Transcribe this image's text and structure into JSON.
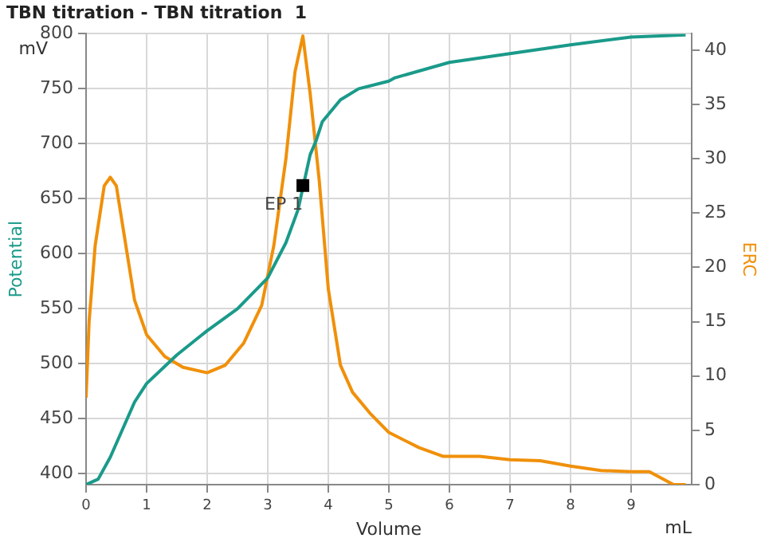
{
  "chart_data": {
    "type": "line",
    "title": "TBN titration - TBN titration  1",
    "xlabel": "Volume",
    "xlim": [
      0,
      10
    ],
    "xticks": [
      0,
      1,
      2,
      3,
      4,
      5,
      6,
      7,
      8,
      9
    ],
    "ylim": [
      390,
      800
    ],
    "yticks": [
      400,
      450,
      500,
      550,
      600,
      650,
      700,
      750,
      800
    ],
    "y2lim": [
      0,
      41.5
    ],
    "y2ticks": [
      0,
      5,
      10,
      15,
      20,
      25,
      30,
      35,
      40
    ],
    "grid": true,
    "legend": false,
    "marker": "none",
    "line_style": "solid",
    "annotations": [
      "mV",
      "mL",
      {
        "text": "EP 1",
        "x": 3.58,
        "y": 662
      }
    ],
    "series": [
      {
        "name": "Potential",
        "color": "#1a9a8a",
        "x": [
          0,
          0.2,
          0.4,
          0.6,
          0.8,
          1.0,
          1.5,
          2,
          2.5,
          3,
          3.3,
          3.5,
          3.7,
          3.8,
          3.9,
          4.2,
          4.5,
          5,
          5.1,
          6,
          7,
          8,
          9,
          9.9
        ],
        "values": [
          390,
          395,
          415,
          440,
          465,
          482,
          508,
          530,
          550,
          578,
          610,
          640,
          690,
          703,
          720,
          740,
          750,
          757,
          760,
          774,
          782,
          790,
          797,
          799
        ]
      },
      {
        "name": "ERC",
        "color": "#f0900a",
        "axis": "y2",
        "x": [
          0,
          0.05,
          0.15,
          0.3,
          0.4,
          0.5,
          0.6,
          0.8,
          1,
          1.3,
          1.6,
          2,
          2.3,
          2.6,
          2.9,
          3.1,
          3.3,
          3.45,
          3.58,
          3.7,
          3.85,
          4,
          4.2,
          4.4,
          4.7,
          5,
          5.5,
          5.9,
          6.5,
          7,
          7.5,
          8,
          8.5,
          9,
          9.3,
          9.7,
          9.9
        ],
        "values": [
          8,
          15,
          22,
          27.5,
          28.3,
          27.5,
          24,
          17,
          13.8,
          11.8,
          10.8,
          10.3,
          11,
          13,
          16.5,
          22,
          30,
          38,
          41.3,
          36,
          28,
          18,
          11,
          8.5,
          6.5,
          4.8,
          3.4,
          2.6,
          2.6,
          2.3,
          2.2,
          1.7,
          1.3,
          1.2,
          1.2,
          0,
          0
        ]
      }
    ]
  }
}
